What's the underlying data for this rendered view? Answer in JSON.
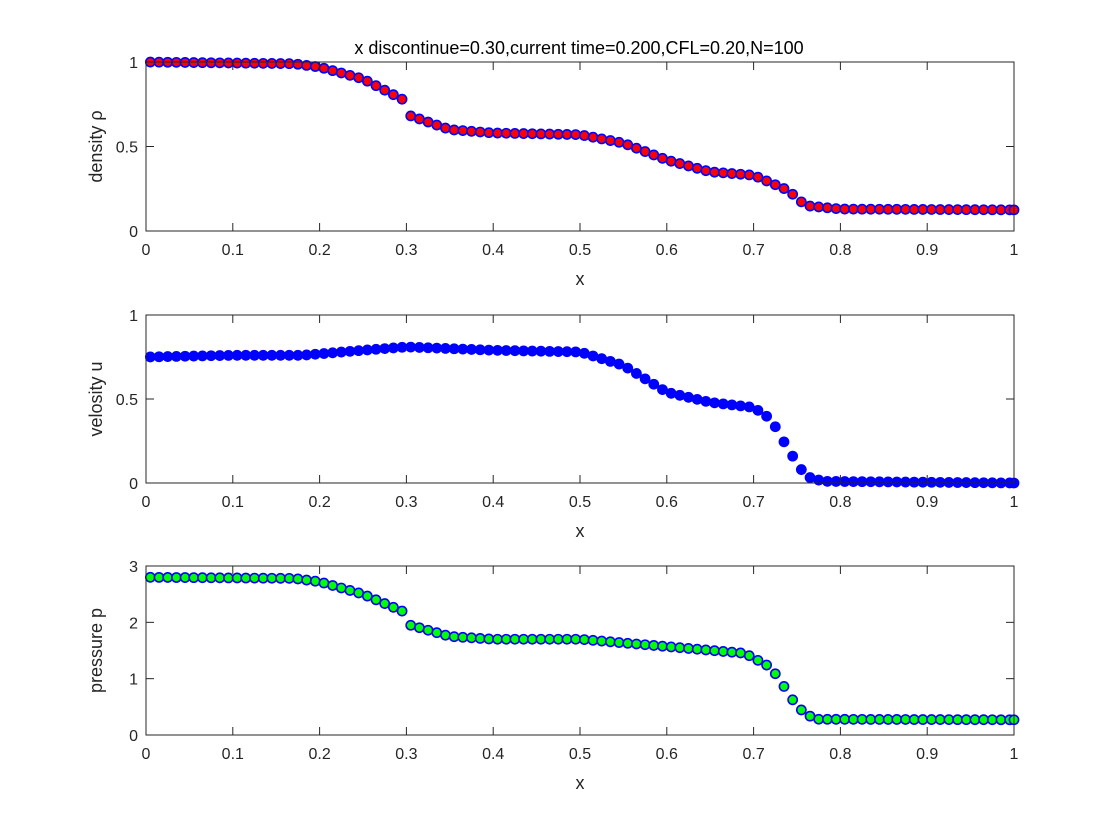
{
  "figure": {
    "title": "x discontinue=0.30,current time=0.200,CFL=0.20,N=100"
  },
  "chart_data": [
    {
      "type": "scatter",
      "name": "density-subplot",
      "xlabel": "x",
      "ylabel": "density ρ",
      "xlim": [
        0,
        1
      ],
      "ylim": [
        0,
        1
      ],
      "xticks": [
        0,
        0.1,
        0.2,
        0.3,
        0.4,
        0.5,
        0.6,
        0.7,
        0.8,
        0.9,
        1
      ],
      "xtick_labels": [
        "0",
        "0.1",
        "0.2",
        "0.3",
        "0.4",
        "0.5",
        "0.6",
        "0.7",
        "0.8",
        "0.9",
        "1"
      ],
      "yticks": [
        0,
        0.5,
        1
      ],
      "ytick_labels": [
        "0",
        "0.5",
        "1"
      ],
      "grid": false,
      "marker": {
        "edge_color": "#0000ff",
        "face_color": "#ff0000"
      },
      "keypoints": [
        [
          0,
          1.0
        ],
        [
          0.17,
          0.99
        ],
        [
          0.2,
          0.97
        ],
        [
          0.25,
          0.9
        ],
        [
          0.295,
          0.78
        ],
        [
          0.3,
          0.69
        ],
        [
          0.35,
          0.6
        ],
        [
          0.4,
          0.58
        ],
        [
          0.5,
          0.57
        ],
        [
          0.55,
          0.52
        ],
        [
          0.6,
          0.42
        ],
        [
          0.65,
          0.35
        ],
        [
          0.7,
          0.33
        ],
        [
          0.74,
          0.24
        ],
        [
          0.76,
          0.15
        ],
        [
          0.8,
          0.13
        ],
        [
          1,
          0.125
        ]
      ]
    },
    {
      "type": "scatter",
      "name": "velocity-subplot",
      "xlabel": "x",
      "ylabel": "velosity u",
      "xlim": [
        0,
        1
      ],
      "ylim": [
        0,
        1
      ],
      "xticks": [
        0,
        0.1,
        0.2,
        0.3,
        0.4,
        0.5,
        0.6,
        0.7,
        0.8,
        0.9,
        1
      ],
      "xtick_labels": [
        "0",
        "0.1",
        "0.2",
        "0.3",
        "0.4",
        "0.5",
        "0.6",
        "0.7",
        "0.8",
        "0.9",
        "1"
      ],
      "yticks": [
        0,
        0.5,
        1
      ],
      "ytick_labels": [
        "0",
        "0.5",
        "1"
      ],
      "grid": false,
      "marker": {
        "edge_color": "#0000ff",
        "face_color": "#0000ff"
      },
      "keypoints": [
        [
          0,
          0.75
        ],
        [
          0.1,
          0.76
        ],
        [
          0.18,
          0.76
        ],
        [
          0.25,
          0.79
        ],
        [
          0.3,
          0.81
        ],
        [
          0.4,
          0.79
        ],
        [
          0.5,
          0.78
        ],
        [
          0.55,
          0.7
        ],
        [
          0.6,
          0.54
        ],
        [
          0.65,
          0.48
        ],
        [
          0.7,
          0.45
        ],
        [
          0.72,
          0.38
        ],
        [
          0.74,
          0.2
        ],
        [
          0.76,
          0.04
        ],
        [
          0.78,
          0.01
        ],
        [
          1,
          0.0
        ]
      ]
    },
    {
      "type": "scatter",
      "name": "pressure-subplot",
      "xlabel": "x",
      "ylabel": "pressure p",
      "xlim": [
        0,
        1
      ],
      "ylim": [
        0,
        3
      ],
      "xticks": [
        0,
        0.1,
        0.2,
        0.3,
        0.4,
        0.5,
        0.6,
        0.7,
        0.8,
        0.9,
        1
      ],
      "xtick_labels": [
        "0",
        "0.1",
        "0.2",
        "0.3",
        "0.4",
        "0.5",
        "0.6",
        "0.7",
        "0.8",
        "0.9",
        "1"
      ],
      "yticks": [
        0,
        1,
        2,
        3
      ],
      "ytick_labels": [
        "0",
        "1",
        "2",
        "3"
      ],
      "grid": false,
      "marker": {
        "edge_color": "#0000ff",
        "face_color": "#00ff00"
      },
      "keypoints": [
        [
          0,
          2.8
        ],
        [
          0.17,
          2.78
        ],
        [
          0.2,
          2.72
        ],
        [
          0.25,
          2.5
        ],
        [
          0.295,
          2.2
        ],
        [
          0.3,
          1.97
        ],
        [
          0.35,
          1.75
        ],
        [
          0.4,
          1.7
        ],
        [
          0.5,
          1.7
        ],
        [
          0.6,
          1.57
        ],
        [
          0.69,
          1.45
        ],
        [
          0.72,
          1.2
        ],
        [
          0.74,
          0.75
        ],
        [
          0.75,
          0.5
        ],
        [
          0.77,
          0.28
        ],
        [
          1,
          0.27
        ]
      ]
    }
  ]
}
